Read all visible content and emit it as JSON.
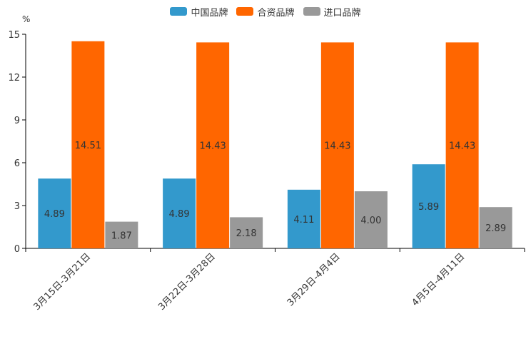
{
  "unit": "%",
  "colors": {
    "china": "#3399cc",
    "jv": "#ff6600",
    "import": "#999999",
    "axis": "#000000",
    "text": "#333333"
  },
  "chart_data": {
    "type": "bar",
    "title": "",
    "ylabel": "%",
    "xlabel": "",
    "ylim": [
      0,
      15
    ],
    "yticks": [
      0,
      3,
      6,
      9,
      12,
      15
    ],
    "categories": [
      "3月15日-3月21日",
      "3月22日-3月28日",
      "3月29日-4月4日",
      "4月5日-4月11日"
    ],
    "series": [
      {
        "name": "中国品牌",
        "values": [
          4.89,
          4.89,
          4.11,
          5.89
        ],
        "labels": [
          "4.89",
          "4.89",
          "4.11",
          "5.89"
        ]
      },
      {
        "name": "合资品牌",
        "values": [
          14.51,
          14.43,
          14.43,
          14.43
        ],
        "labels": [
          "14.51",
          "14.43",
          "14.43",
          "14.43"
        ]
      },
      {
        "name": "进口品牌",
        "values": [
          1.87,
          2.18,
          4.0,
          2.89
        ],
        "labels": [
          "1.87",
          "2.18",
          "4.00",
          "2.89"
        ]
      }
    ],
    "legend_position": "top-center",
    "grid": false
  }
}
